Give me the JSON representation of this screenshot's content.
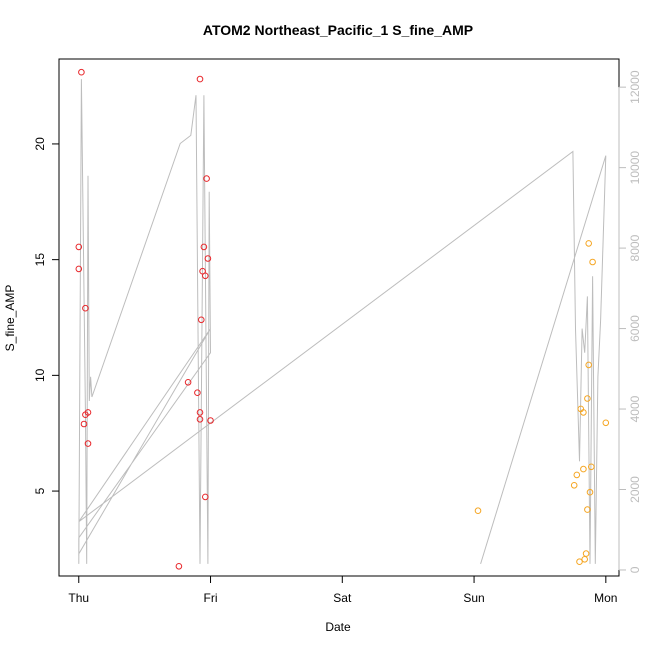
{
  "chart_data": {
    "type": "scatter",
    "title": "ATOM2 Northeast_Pacific_1 S_fine_AMP",
    "xlabel": "Date",
    "ylabel": "S_fine_AMP",
    "x_ticks": [
      "Thu",
      "Fri",
      "Sat",
      "Sun",
      "Mon"
    ],
    "xlim_days": [
      -0.15,
      4.1
    ],
    "ylim": [
      1.33,
      23.67
    ],
    "y_ticks": [
      5,
      10,
      15,
      20
    ],
    "right_axis": {
      "ylim": [
        -150,
        12700
      ],
      "ticks": [
        0,
        2000,
        4000,
        6000,
        8000,
        10000,
        12000
      ],
      "color": "#bdbdbd"
    },
    "grid": false,
    "series": [
      {
        "color": "#e8272b",
        "points": [
          [
            0.02,
            23.1
          ],
          [
            0.0,
            15.55
          ],
          [
            0.0,
            14.6
          ],
          [
            0.05,
            12.9
          ],
          [
            0.07,
            8.4
          ],
          [
            0.05,
            8.3
          ],
          [
            0.04,
            7.9
          ],
          [
            0.07,
            7.05
          ],
          [
            0.76,
            1.75
          ],
          [
            0.83,
            9.7
          ],
          [
            0.9,
            9.25
          ],
          [
            0.92,
            8.4
          ],
          [
            0.92,
            8.1
          ],
          [
            0.92,
            22.8
          ],
          [
            0.97,
            18.5
          ],
          [
            0.95,
            15.55
          ],
          [
            0.94,
            14.5
          ],
          [
            0.96,
            14.3
          ],
          [
            0.98,
            15.05
          ],
          [
            0.93,
            12.4
          ],
          [
            0.96,
            4.75
          ],
          [
            1.0,
            8.05
          ]
        ]
      },
      {
        "color": "#f5a623",
        "points": [
          [
            3.03,
            4.15
          ],
          [
            3.76,
            5.25
          ],
          [
            3.78,
            5.7
          ],
          [
            3.8,
            1.95
          ],
          [
            3.81,
            8.55
          ],
          [
            3.83,
            8.4
          ],
          [
            3.83,
            5.95
          ],
          [
            3.84,
            2.05
          ],
          [
            3.85,
            2.3
          ],
          [
            3.86,
            9.0
          ],
          [
            3.86,
            4.2
          ],
          [
            3.87,
            10.45
          ],
          [
            3.87,
            15.7
          ],
          [
            3.88,
            4.95
          ],
          [
            3.89,
            6.05
          ],
          [
            3.9,
            14.9
          ],
          [
            4.0,
            7.95
          ]
        ]
      }
    ],
    "line_series": {
      "axis": "right",
      "color": "#bdbdbd",
      "points": [
        [
          0.0,
          150
        ],
        [
          0.02,
          12200
        ],
        [
          0.05,
          4000
        ],
        [
          0.06,
          150
        ],
        [
          0.07,
          9800
        ],
        [
          0.08,
          4200
        ],
        [
          0.09,
          4800
        ],
        [
          0.1,
          4300
        ],
        [
          0.77,
          10600
        ],
        [
          0.85,
          10800
        ],
        [
          0.89,
          11800
        ],
        [
          0.92,
          150
        ],
        [
          0.95,
          11800
        ],
        [
          0.98,
          150
        ],
        [
          0.99,
          9400
        ],
        [
          1.0,
          5400
        ],
        [
          0.0,
          800
        ],
        [
          0.0,
          400
        ],
        [
          1.0,
          6000
        ],
        [
          0.0,
          1200
        ],
        [
          3.75,
          10400
        ],
        [
          3.77,
          6000
        ],
        [
          3.8,
          2700
        ],
        [
          3.82,
          6000
        ],
        [
          3.84,
          5400
        ],
        [
          3.86,
          6800
        ],
        [
          3.88,
          150
        ],
        [
          3.9,
          7300
        ],
        [
          3.92,
          150
        ],
        [
          3.94,
          4800
        ],
        [
          3.96,
          6200
        ],
        [
          4.0,
          10300
        ],
        [
          3.05,
          150
        ]
      ]
    }
  }
}
